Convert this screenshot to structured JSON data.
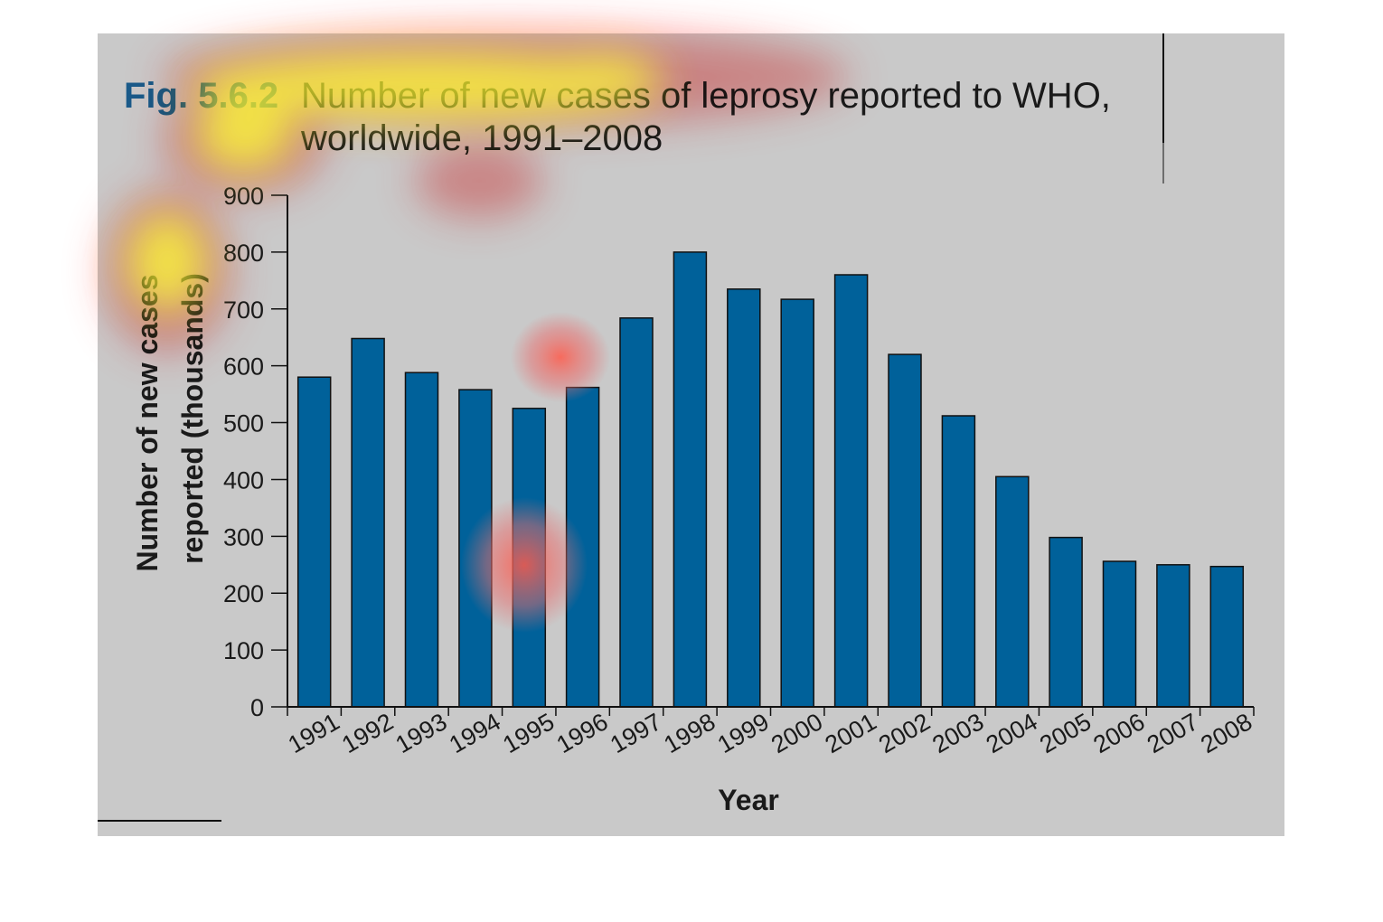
{
  "figure": {
    "label": "Fig. 5.6.2",
    "title_line1": "Number of new cases of leprosy reported to WHO,",
    "title_line2": "worldwide, 1991–2008"
  },
  "chart_data": {
    "type": "bar",
    "title": "Number of new cases of leprosy reported to WHO, worldwide, 1991–2008",
    "xlabel": "Year",
    "ylabel_line1": "Number of new cases",
    "ylabel_line2": "reported (thousands)",
    "ylim": [
      0,
      900
    ],
    "yticks": [
      0,
      100,
      200,
      300,
      400,
      500,
      600,
      700,
      800,
      900
    ],
    "categories": [
      "1991",
      "1992",
      "1993",
      "1994",
      "1995",
      "1996",
      "1997",
      "1998",
      "1999",
      "2000",
      "2001",
      "2002",
      "2003",
      "2004",
      "2005",
      "2006",
      "2007",
      "2008"
    ],
    "values": [
      580,
      648,
      588,
      558,
      525,
      562,
      684,
      800,
      735,
      717,
      760,
      620,
      512,
      405,
      298,
      256,
      250,
      247
    ],
    "grid": false,
    "legend": "none"
  },
  "colors": {
    "bar": "#00619a",
    "figure_label": "#1a5a8a",
    "panel": "#c9c9c9",
    "text": "#1a1a1a"
  }
}
